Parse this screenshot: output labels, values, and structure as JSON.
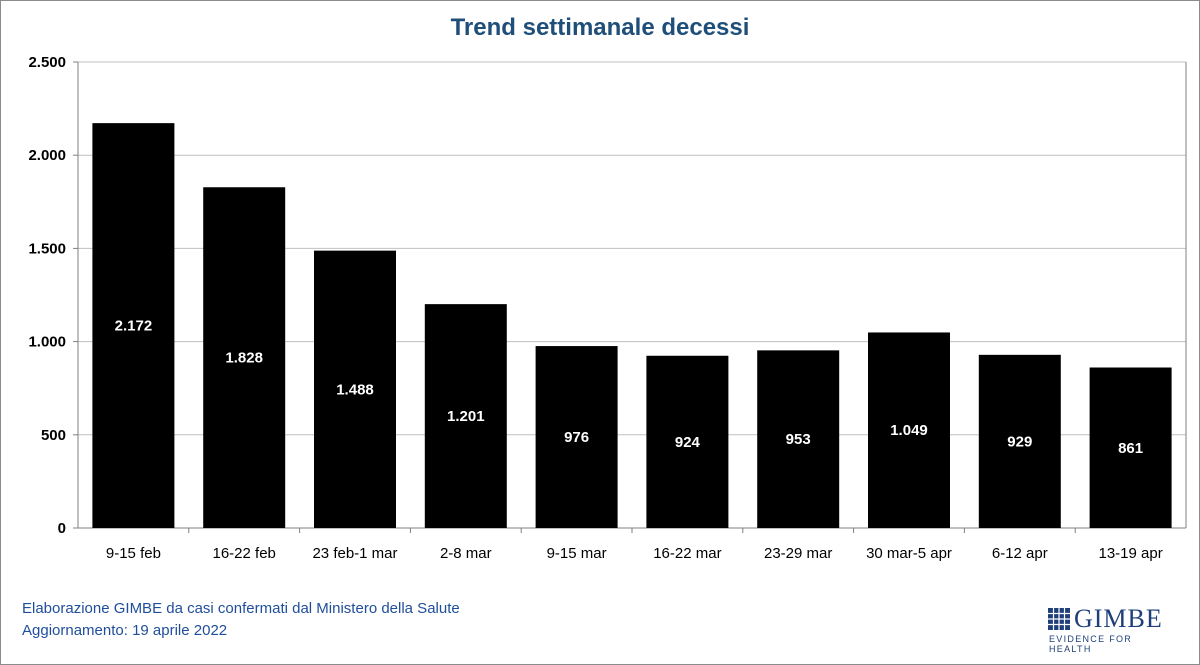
{
  "chart_data": {
    "type": "bar",
    "title": "Trend settimanale decessi",
    "categories": [
      "9-15 feb",
      "16-22 feb",
      "23 feb-1 mar",
      "2-8 mar",
      "9-15 mar",
      "16-22 mar",
      "23-29 mar",
      "30 mar-5 apr",
      "6-12 apr",
      "13-19 apr"
    ],
    "values": [
      2172,
      1828,
      1488,
      1201,
      976,
      924,
      953,
      1049,
      929,
      861
    ],
    "value_labels": [
      "2.172",
      "1.828",
      "1.488",
      "1.201",
      "976",
      "924",
      "953",
      "1.049",
      "929",
      "861"
    ],
    "ylim": [
      0,
      2500
    ],
    "yticks": [
      0,
      500,
      1000,
      1500,
      2000,
      2500
    ],
    "ytick_labels": [
      "0",
      "500",
      "1.000",
      "1.500",
      "2.000",
      "2.500"
    ],
    "xlabel": "",
    "ylabel": "",
    "grid": true,
    "bar_color": "#000000",
    "label_color": "#ffffff",
    "grid_color": "#c0c0c0"
  },
  "footer": {
    "source": "Elaborazione GIMBE da casi confermati dal Ministero della Salute",
    "updated": "Aggiornamento: 19 aprile 2022"
  },
  "logo": {
    "name": "GIMBE",
    "tagline": "EVIDENCE FOR HEALTH",
    "color": "#1f3f7a"
  },
  "title_color": "#1f4e79"
}
